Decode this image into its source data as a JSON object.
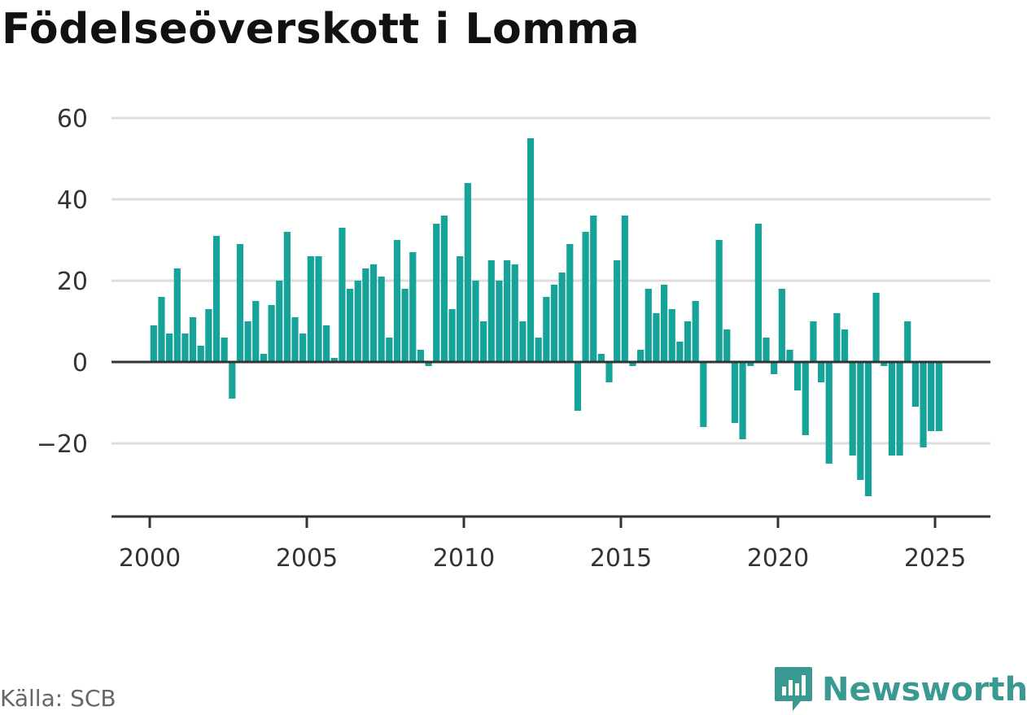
{
  "title": "Födelseöverskott i Lomma",
  "source": "Källa: SCB",
  "brand": "Newsworthy",
  "colors": {
    "bar": "#16a39a",
    "axis": "#333333",
    "grid": "#dddddd",
    "brand": "#3a9a92"
  },
  "chart_data": {
    "type": "bar",
    "title": "Födelseöverskott i Lomma",
    "xlabel": "",
    "ylabel": "",
    "ylim": [
      -37,
      63
    ],
    "xlim": [
      1999.75,
      2025.75
    ],
    "grid": true,
    "y_ticks": [
      60,
      40,
      20,
      0,
      -20
    ],
    "y_tick_labels": [
      "60",
      "40",
      "20",
      "0",
      "−20"
    ],
    "x_ticks": [
      2000,
      2005,
      2010,
      2015,
      2020,
      2025
    ],
    "x_tick_labels": [
      "2000",
      "2005",
      "2010",
      "2015",
      "2020",
      "2025"
    ],
    "start_year": 2000,
    "frequency": "quarterly",
    "values": [
      9,
      16,
      7,
      23,
      7,
      11,
      4,
      13,
      31,
      6,
      -9,
      29,
      10,
      15,
      2,
      14,
      20,
      32,
      11,
      7,
      26,
      26,
      9,
      1,
      33,
      18,
      20,
      23,
      24,
      21,
      6,
      30,
      18,
      27,
      3,
      -1,
      34,
      36,
      13,
      26,
      44,
      20,
      10,
      25,
      20,
      25,
      24,
      10,
      55,
      6,
      16,
      19,
      22,
      29,
      -12,
      32,
      36,
      2,
      -5,
      25,
      36,
      -1,
      3,
      18,
      12,
      19,
      13,
      5,
      10,
      15,
      -16,
      0,
      30,
      8,
      -15,
      -19,
      -1,
      34,
      6,
      -3,
      18,
      3,
      -7,
      -18,
      10,
      -5,
      -25,
      12,
      8,
      -23,
      -29,
      -33,
      17,
      -1,
      -23,
      -23,
      10,
      -11,
      -21,
      -17,
      -17
    ]
  }
}
